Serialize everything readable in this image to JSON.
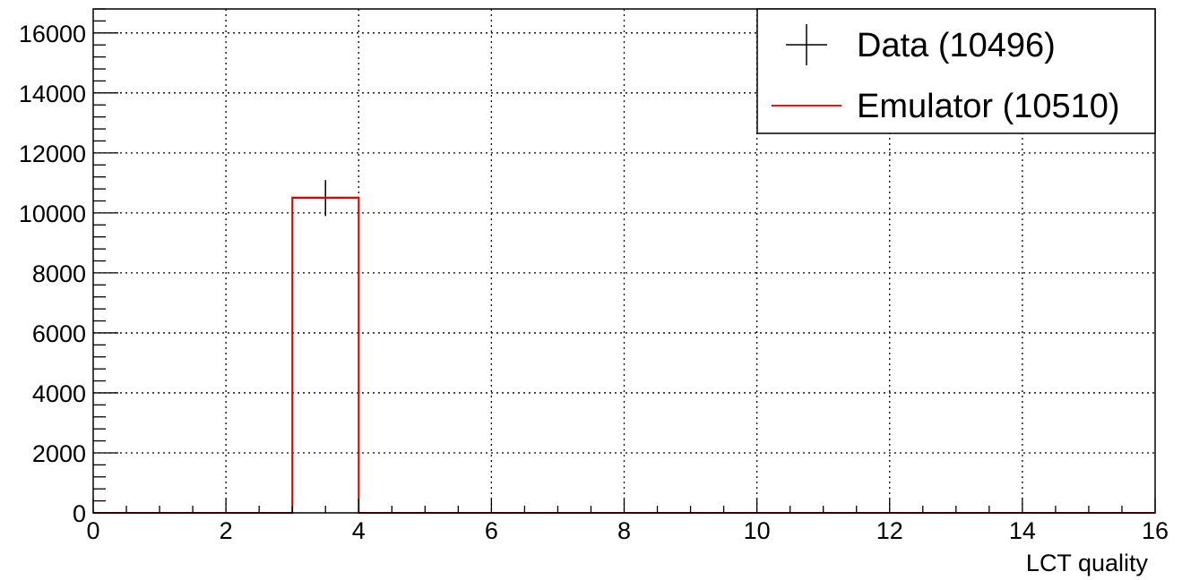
{
  "chart_data": {
    "type": "bar",
    "xlabel": "LCT quality",
    "ylabel": "",
    "xlim": [
      0,
      16
    ],
    "ylim": [
      0,
      16800
    ],
    "grid": true,
    "legend_position": "top-right",
    "x_ticks": [
      "0",
      "2",
      "4",
      "6",
      "8",
      "10",
      "12",
      "14",
      "16"
    ],
    "y_ticks": [
      "0",
      "2000",
      "4000",
      "6000",
      "8000",
      "10000",
      "12000",
      "14000",
      "16000"
    ],
    "bin_edges": [
      0,
      1,
      2,
      3,
      4,
      5,
      6,
      7,
      8,
      9,
      10,
      11,
      12,
      13,
      14,
      15,
      16
    ],
    "series": [
      {
        "name": "Data (10496)",
        "style": "points-with-errors",
        "color": "#000000",
        "values": [
          0,
          0,
          0,
          10496,
          0,
          0,
          0,
          0,
          0,
          0,
          0,
          0,
          0,
          0,
          0,
          0
        ],
        "errors": [
          0,
          0,
          0,
          600,
          0,
          0,
          0,
          0,
          0,
          0,
          0,
          0,
          0,
          0,
          0,
          0
        ]
      },
      {
        "name": "Emulator (10510)",
        "style": "step-histogram",
        "color": "#dd0000",
        "values": [
          0,
          0,
          0,
          10510,
          0,
          0,
          0,
          0,
          0,
          0,
          0,
          0,
          0,
          0,
          0,
          0
        ]
      }
    ]
  }
}
